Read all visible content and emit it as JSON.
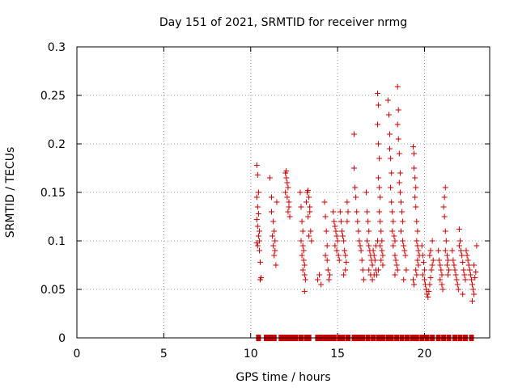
{
  "chart_data": {
    "type": "scatter",
    "title": "Day 151 of 2021, SRMTID for receiver nrmg",
    "xlabel": "GPS time / hours",
    "ylabel": "SRMTID / TECUs",
    "xlim": [
      0,
      23.75
    ],
    "ylim": [
      0,
      0.3
    ],
    "x_ticks": [
      0,
      5,
      10,
      15,
      20
    ],
    "y_ticks": [
      0,
      0.05,
      0.1,
      0.15,
      0.2,
      0.25,
      0.3
    ],
    "x_tick_labels": [
      "0",
      "5",
      "10",
      "15",
      "20"
    ],
    "y_tick_labels": [
      "0",
      "0.05",
      "0.1",
      "0.15",
      "0.2",
      "0.25",
      "0.3"
    ],
    "grid": true,
    "marker": "+",
    "color": "#cc0000",
    "series": [
      {
        "name": "SRMTID",
        "points": [
          [
            10.35,
            0.178
          ],
          [
            10.4,
            0.168
          ],
          [
            10.45,
            0.15
          ],
          [
            10.35,
            0.145
          ],
          [
            10.4,
            0.135
          ],
          [
            10.45,
            0.128
          ],
          [
            10.35,
            0.122
          ],
          [
            10.4,
            0.115
          ],
          [
            10.5,
            0.11
          ],
          [
            10.45,
            0.105
          ],
          [
            10.35,
            0.098
          ],
          [
            10.4,
            0.095
          ],
          [
            10.5,
            0.09
          ],
          [
            10.55,
            0.078
          ],
          [
            10.6,
            0.062
          ],
          [
            10.55,
            0.06
          ],
          [
            10.5,
            0.1
          ],
          [
            11.1,
            0.165
          ],
          [
            11.2,
            0.145
          ],
          [
            11.2,
            0.13
          ],
          [
            11.3,
            0.12
          ],
          [
            11.35,
            0.11
          ],
          [
            11.4,
            0.1
          ],
          [
            11.3,
            0.095
          ],
          [
            11.4,
            0.09
          ],
          [
            11.35,
            0.085
          ],
          [
            11.45,
            0.075
          ],
          [
            11.5,
            0.14
          ],
          [
            11.25,
            0.105
          ],
          [
            12.0,
            0.17
          ],
          [
            12.05,
            0.165
          ],
          [
            12.1,
            0.16
          ],
          [
            12.15,
            0.155
          ],
          [
            12.0,
            0.15
          ],
          [
            12.1,
            0.145
          ],
          [
            12.2,
            0.14
          ],
          [
            12.15,
            0.13
          ],
          [
            12.25,
            0.125
          ],
          [
            12.05,
            0.172
          ],
          [
            12.2,
            0.135
          ],
          [
            12.85,
            0.15
          ],
          [
            12.9,
            0.135
          ],
          [
            12.95,
            0.12
          ],
          [
            13.0,
            0.11
          ],
          [
            12.9,
            0.1
          ],
          [
            13.0,
            0.095
          ],
          [
            13.05,
            0.09
          ],
          [
            12.95,
            0.085
          ],
          [
            13.05,
            0.08
          ],
          [
            13.1,
            0.075
          ],
          [
            13.0,
            0.07
          ],
          [
            13.1,
            0.065
          ],
          [
            13.15,
            0.06
          ],
          [
            13.1,
            0.048
          ],
          [
            13.2,
            0.14
          ],
          [
            13.25,
            0.15
          ],
          [
            13.3,
            0.152
          ],
          [
            13.35,
            0.145
          ],
          [
            13.4,
            0.13
          ],
          [
            13.3,
            0.125
          ],
          [
            13.45,
            0.11
          ],
          [
            13.35,
            0.105
          ],
          [
            13.5,
            0.1
          ],
          [
            13.4,
            0.135
          ],
          [
            13.85,
            0.06
          ],
          [
            13.95,
            0.065
          ],
          [
            14.05,
            0.055
          ],
          [
            14.25,
            0.14
          ],
          [
            14.3,
            0.125
          ],
          [
            14.35,
            0.11
          ],
          [
            14.4,
            0.095
          ],
          [
            14.3,
            0.085
          ],
          [
            14.4,
            0.08
          ],
          [
            14.45,
            0.07
          ],
          [
            14.5,
            0.06
          ],
          [
            14.55,
            0.065
          ],
          [
            14.75,
            0.13
          ],
          [
            14.8,
            0.12
          ],
          [
            14.85,
            0.115
          ],
          [
            14.9,
            0.11
          ],
          [
            14.95,
            0.105
          ],
          [
            15.0,
            0.1
          ],
          [
            14.85,
            0.095
          ],
          [
            14.95,
            0.09
          ],
          [
            15.05,
            0.085
          ],
          [
            15.1,
            0.08
          ],
          [
            15.15,
            0.13
          ],
          [
            15.2,
            0.12
          ],
          [
            15.25,
            0.11
          ],
          [
            15.3,
            0.105
          ],
          [
            15.35,
            0.1
          ],
          [
            15.4,
            0.09
          ],
          [
            15.45,
            0.085
          ],
          [
            15.5,
            0.078
          ],
          [
            15.35,
            0.065
          ],
          [
            15.45,
            0.07
          ],
          [
            15.55,
            0.14
          ],
          [
            15.6,
            0.13
          ],
          [
            15.55,
            0.12
          ],
          [
            15.95,
            0.21
          ],
          [
            15.95,
            0.175
          ],
          [
            16.0,
            0.155
          ],
          [
            16.05,
            0.145
          ],
          [
            16.1,
            0.13
          ],
          [
            16.15,
            0.12
          ],
          [
            16.2,
            0.11
          ],
          [
            16.25,
            0.1
          ],
          [
            16.3,
            0.095
          ],
          [
            16.35,
            0.09
          ],
          [
            16.4,
            0.08
          ],
          [
            16.45,
            0.07
          ],
          [
            16.5,
            0.06
          ],
          [
            16.65,
            0.15
          ],
          [
            16.7,
            0.13
          ],
          [
            16.75,
            0.12
          ],
          [
            16.8,
            0.11
          ],
          [
            16.7,
            0.1
          ],
          [
            16.8,
            0.095
          ],
          [
            16.85,
            0.09
          ],
          [
            16.9,
            0.085
          ],
          [
            16.95,
            0.08
          ],
          [
            17.0,
            0.075
          ],
          [
            16.8,
            0.07
          ],
          [
            16.9,
            0.065
          ],
          [
            17.0,
            0.06
          ],
          [
            17.05,
            0.09
          ],
          [
            17.1,
            0.085
          ],
          [
            17.15,
            0.08
          ],
          [
            17.2,
            0.07
          ],
          [
            17.1,
            0.065
          ],
          [
            17.2,
            0.095
          ],
          [
            17.3,
            0.252
          ],
          [
            17.35,
            0.24
          ],
          [
            17.3,
            0.22
          ],
          [
            17.35,
            0.2
          ],
          [
            17.4,
            0.185
          ],
          [
            17.35,
            0.165
          ],
          [
            17.4,
            0.155
          ],
          [
            17.45,
            0.145
          ],
          [
            17.4,
            0.13
          ],
          [
            17.45,
            0.12
          ],
          [
            17.5,
            0.11
          ],
          [
            17.55,
            0.1
          ],
          [
            17.45,
            0.095
          ],
          [
            17.55,
            0.09
          ],
          [
            17.6,
            0.085
          ],
          [
            17.5,
            0.08
          ],
          [
            17.6,
            0.075
          ],
          [
            17.35,
            0.07
          ],
          [
            17.25,
            0.065
          ],
          [
            17.3,
            0.1
          ],
          [
            17.9,
            0.245
          ],
          [
            17.95,
            0.23
          ],
          [
            18.0,
            0.21
          ],
          [
            18.0,
            0.195
          ],
          [
            18.05,
            0.185
          ],
          [
            18.1,
            0.17
          ],
          [
            18.05,
            0.155
          ],
          [
            18.1,
            0.14
          ],
          [
            18.15,
            0.13
          ],
          [
            18.2,
            0.12
          ],
          [
            18.15,
            0.11
          ],
          [
            18.25,
            0.105
          ],
          [
            18.3,
            0.1
          ],
          [
            18.2,
            0.095
          ],
          [
            18.3,
            0.085
          ],
          [
            18.35,
            0.08
          ],
          [
            18.4,
            0.075
          ],
          [
            18.45,
            0.07
          ],
          [
            18.3,
            0.065
          ],
          [
            18.45,
            0.259
          ],
          [
            18.5,
            0.235
          ],
          [
            18.45,
            0.22
          ],
          [
            18.5,
            0.205
          ],
          [
            18.55,
            0.19
          ],
          [
            18.6,
            0.17
          ],
          [
            18.55,
            0.16
          ],
          [
            18.6,
            0.15
          ],
          [
            18.65,
            0.14
          ],
          [
            18.7,
            0.13
          ],
          [
            18.75,
            0.12
          ],
          [
            18.65,
            0.11
          ],
          [
            18.75,
            0.1
          ],
          [
            18.8,
            0.095
          ],
          [
            18.85,
            0.09
          ],
          [
            18.9,
            0.085
          ],
          [
            18.8,
            0.06
          ],
          [
            18.95,
            0.07
          ],
          [
            19.35,
            0.197
          ],
          [
            19.4,
            0.19
          ],
          [
            19.4,
            0.175
          ],
          [
            19.45,
            0.165
          ],
          [
            19.5,
            0.155
          ],
          [
            19.45,
            0.145
          ],
          [
            19.5,
            0.135
          ],
          [
            19.55,
            0.12
          ],
          [
            19.6,
            0.11
          ],
          [
            19.55,
            0.1
          ],
          [
            19.6,
            0.095
          ],
          [
            19.65,
            0.09
          ],
          [
            19.7,
            0.085
          ],
          [
            19.6,
            0.08
          ],
          [
            19.65,
            0.075
          ],
          [
            19.5,
            0.07
          ],
          [
            19.55,
            0.065
          ],
          [
            19.35,
            0.06
          ],
          [
            19.4,
            0.055
          ],
          [
            19.85,
            0.095
          ],
          [
            19.9,
            0.085
          ],
          [
            19.95,
            0.078
          ],
          [
            20.0,
            0.07
          ],
          [
            19.9,
            0.065
          ],
          [
            20.0,
            0.06
          ],
          [
            20.05,
            0.055
          ],
          [
            20.1,
            0.05
          ],
          [
            20.15,
            0.045
          ],
          [
            20.2,
            0.042
          ],
          [
            20.25,
            0.048
          ],
          [
            20.3,
            0.055
          ],
          [
            20.35,
            0.062
          ],
          [
            20.4,
            0.07
          ],
          [
            20.45,
            0.075
          ],
          [
            20.5,
            0.08
          ],
          [
            20.3,
            0.085
          ],
          [
            20.35,
            0.09
          ],
          [
            20.45,
            0.1
          ],
          [
            20.8,
            0.09
          ],
          [
            20.85,
            0.08
          ],
          [
            20.9,
            0.075
          ],
          [
            20.95,
            0.07
          ],
          [
            21.0,
            0.065
          ],
          [
            20.9,
            0.06
          ],
          [
            21.0,
            0.055
          ],
          [
            21.05,
            0.05
          ],
          [
            21.1,
            0.135
          ],
          [
            21.15,
            0.145
          ],
          [
            21.2,
            0.155
          ],
          [
            21.15,
            0.125
          ],
          [
            21.2,
            0.11
          ],
          [
            21.25,
            0.1
          ],
          [
            21.2,
            0.09
          ],
          [
            21.3,
            0.085
          ],
          [
            21.35,
            0.08
          ],
          [
            21.3,
            0.075
          ],
          [
            21.4,
            0.07
          ],
          [
            21.35,
            0.065
          ],
          [
            21.6,
            0.09
          ],
          [
            21.65,
            0.08
          ],
          [
            21.7,
            0.075
          ],
          [
            21.75,
            0.07
          ],
          [
            21.8,
            0.065
          ],
          [
            21.85,
            0.06
          ],
          [
            21.9,
            0.055
          ],
          [
            21.95,
            0.05
          ],
          [
            22.0,
            0.095
          ],
          [
            22.0,
            0.112
          ],
          [
            22.05,
            0.1
          ],
          [
            22.1,
            0.09
          ],
          [
            22.15,
            0.085
          ],
          [
            22.2,
            0.078
          ],
          [
            22.25,
            0.07
          ],
          [
            22.3,
            0.065
          ],
          [
            22.35,
            0.06
          ],
          [
            22.2,
            0.045
          ],
          [
            22.4,
            0.09
          ],
          [
            22.45,
            0.085
          ],
          [
            22.5,
            0.08
          ],
          [
            22.55,
            0.075
          ],
          [
            22.6,
            0.07
          ],
          [
            22.65,
            0.065
          ],
          [
            22.7,
            0.06
          ],
          [
            22.75,
            0.055
          ],
          [
            22.8,
            0.05
          ],
          [
            22.85,
            0.045
          ],
          [
            22.9,
            0.062
          ],
          [
            22.95,
            0.068
          ],
          [
            22.75,
            0.038
          ],
          [
            23.0,
            0.095
          ],
          [
            22.85,
            0.075
          ]
        ]
      }
    ],
    "zero_markers_x": [
      10.45,
      10.9,
      11.15,
      11.35,
      11.75,
      11.95,
      12.15,
      12.35,
      12.6,
      12.9,
      13.2,
      13.35,
      13.85,
      14.05,
      14.3,
      14.55,
      14.8,
      15.1,
      15.3,
      15.6,
      15.95,
      16.2,
      16.45,
      16.75,
      17.05,
      17.35,
      17.6,
      17.9,
      18.1,
      18.4,
      18.7,
      19.0,
      19.3,
      19.55,
      19.85,
      20.15,
      20.45,
      20.8,
      21.1,
      21.4,
      21.75,
      22.05,
      22.35,
      22.7
    ]
  }
}
